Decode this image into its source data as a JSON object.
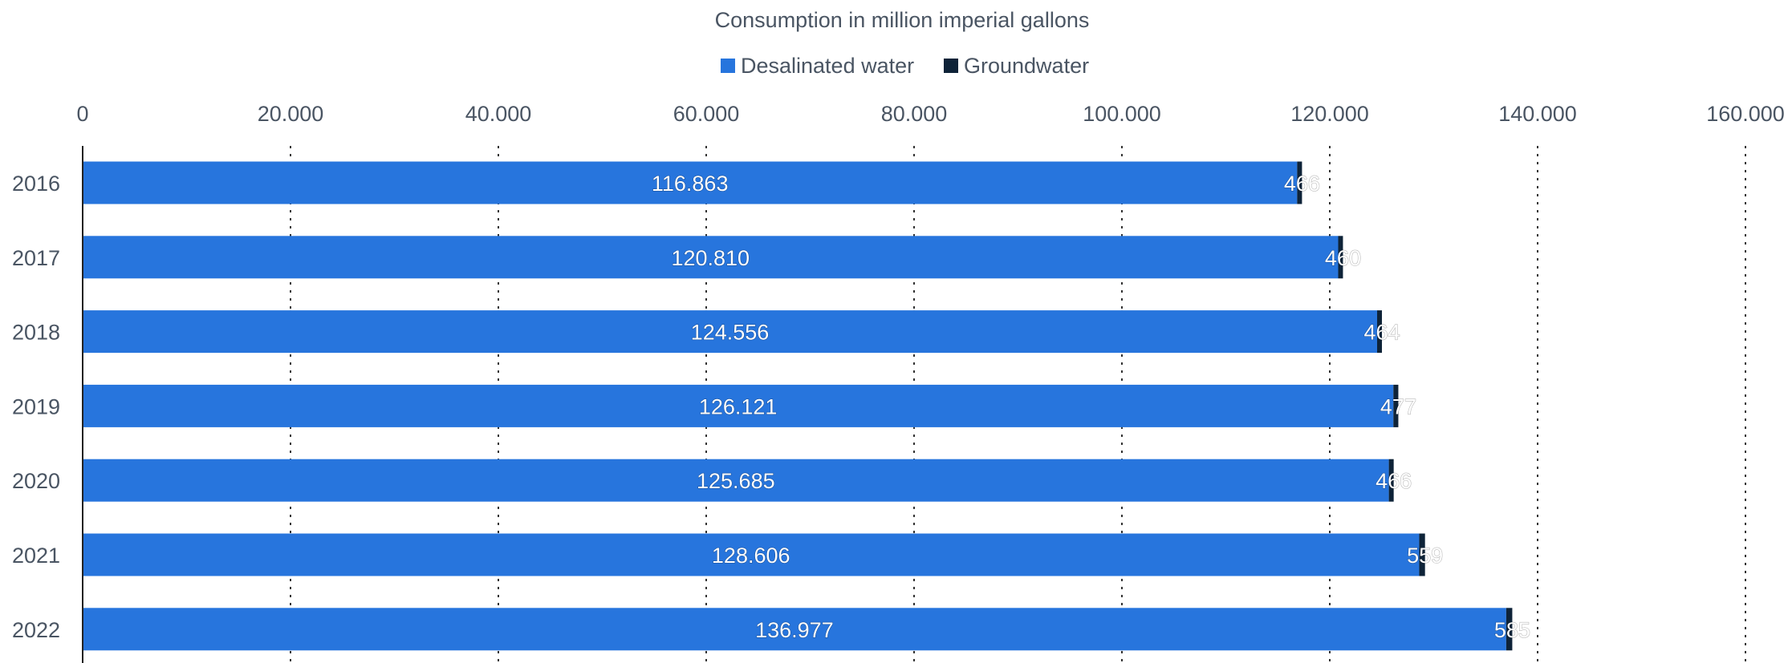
{
  "chart_data": {
    "type": "bar",
    "orientation": "horizontal",
    "stacked": true,
    "xlabel": "Consumption in million imperial gallons",
    "xlim": [
      0,
      160000
    ],
    "x_ticks": [
      0,
      20000,
      40000,
      60000,
      80000,
      100000,
      120000,
      140000,
      160000
    ],
    "x_tick_labels": [
      "0",
      "20.000",
      "40.000",
      "60.000",
      "80.000",
      "100.000",
      "120.000",
      "140.000",
      "160.000"
    ],
    "categories": [
      "2016",
      "2017",
      "2018",
      "2019",
      "2020",
      "2021",
      "2022"
    ],
    "series": [
      {
        "name": "Desalinated water",
        "color": "#2775dd",
        "values": [
          116863,
          120810,
          124556,
          126121,
          125685,
          128606,
          136977
        ],
        "labels": [
          "116.863",
          "120.810",
          "124.556",
          "126.121",
          "125.685",
          "128.606",
          "136.977"
        ]
      },
      {
        "name": "Groundwater",
        "color": "#0e2338",
        "values": [
          466,
          460,
          464,
          477,
          466,
          559,
          585
        ],
        "labels": [
          "466",
          "460",
          "464",
          "477",
          "466",
          "559",
          "585"
        ]
      }
    ],
    "legend_position": "top-center",
    "grid": "vertical-dotted"
  }
}
